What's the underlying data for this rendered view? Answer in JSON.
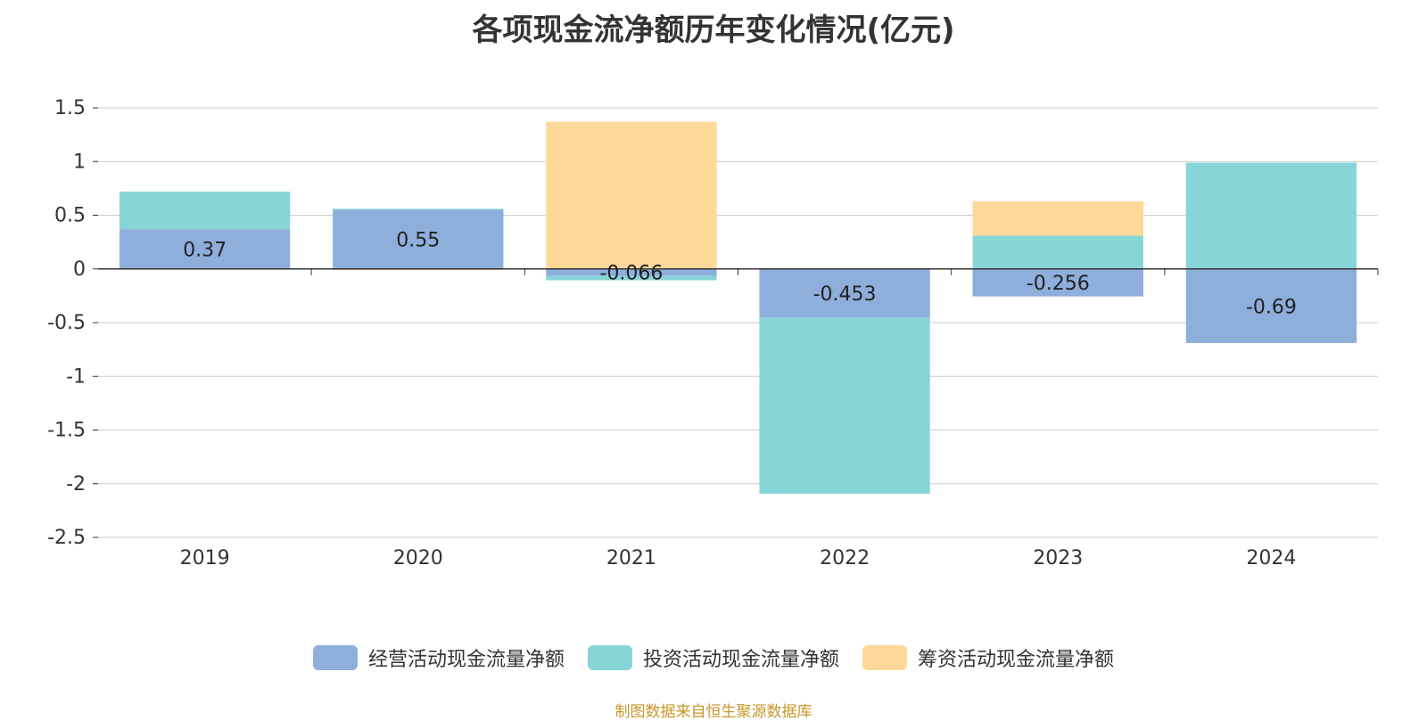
{
  "chart_data": {
    "type": "bar",
    "stacked": true,
    "title": "各项现金流净额历年变化情况(亿元)",
    "categories": [
      "2019",
      "2020",
      "2021",
      "2022",
      "2023",
      "2024"
    ],
    "series": [
      {
        "name": "经营活动现金流量净额",
        "color": "#8eaedb",
        "values": [
          0.37,
          0.55,
          -0.066,
          -0.453,
          -0.256,
          -0.69
        ],
        "labels": [
          "0.37",
          "0.55",
          "-0.066",
          "-0.453",
          "-0.256",
          "-0.69"
        ]
      },
      {
        "name": "投资活动现金流量净额",
        "color": "#88d5d8",
        "values": [
          0.35,
          0.01,
          -0.04,
          -1.64,
          0.31,
          0.99
        ]
      },
      {
        "name": "筹资活动现金流量净额",
        "color": "#fed898",
        "values": [
          0.0,
          -0.01,
          1.37,
          0.0,
          0.32,
          0.0
        ]
      }
    ],
    "yticks": [
      "1.5",
      "1",
      "0.5",
      "0",
      "-0.5",
      "-1",
      "-1.5",
      "-2",
      "-2.5"
    ],
    "ylim": [
      -2.5,
      1.5
    ],
    "grid": true,
    "legend_position": "bottom"
  },
  "source_note": "制图数据来自恒生聚源数据库"
}
